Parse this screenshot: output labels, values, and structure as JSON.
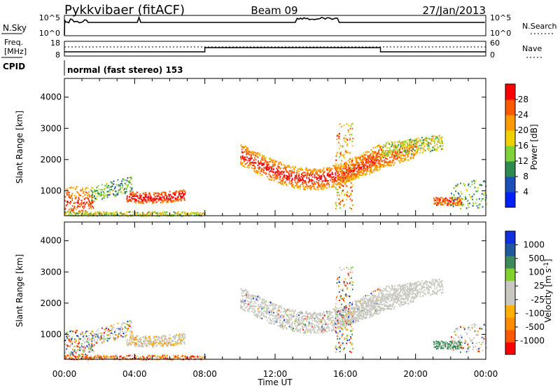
{
  "header": {
    "station": "Pykkvibaer (fitACF)",
    "beam": "Beam 09",
    "date": "27/Jan/2013"
  },
  "nsky_panel": {
    "left_label": "N.Sky",
    "right_label": "N.Search",
    "left_ticks": [
      "10^5",
      "10^0"
    ],
    "right_ticks": [
      "10^5",
      "10^0"
    ]
  },
  "freq_panel": {
    "left_label_1": "Freq.",
    "left_label_2": "[MHz]",
    "left_ticks": [
      "18",
      "8"
    ],
    "right_label": "Nave",
    "right_ticks": [
      "60",
      "0"
    ]
  },
  "cpid": {
    "label": "CPID",
    "value": "normal (fast stereo) 153"
  },
  "colors": {
    "power_scale": [
      "#0020ff",
      "#1d4fb8",
      "#2e8a50",
      "#7fd23a",
      "#f0d000",
      "#ff9a00",
      "#ff5800",
      "#ff0000"
    ],
    "velocity_scale": [
      "#ff0000",
      "#ff5800",
      "#ff8c00",
      "#ffb000",
      "#c8c8c0",
      "#c8c8c0",
      "#80d030",
      "#3e8a5a",
      "#2058a0",
      "#1030e0"
    ],
    "ground_scatter": "#c8c8c0"
  },
  "chart_data": [
    {
      "type": "heatmap",
      "panel": "power",
      "ylabel": "Slant Range [km]",
      "yticks": [
        "1000",
        "2000",
        "3000",
        "4000"
      ],
      "ylim": [
        200,
        4600
      ],
      "xlim": [
        0,
        24
      ],
      "colorbar_label": "Power [dB]",
      "colorbar_ticks": [
        "4",
        "8",
        "12",
        "16",
        "20",
        "24",
        "28"
      ],
      "colorbar_range": [
        0,
        32
      ]
    },
    {
      "type": "heatmap",
      "panel": "velocity",
      "ylabel": "Slant Range [km]",
      "yticks": [
        "1000",
        "2000",
        "3000",
        "4000"
      ],
      "ylim": [
        200,
        4600
      ],
      "xlim": [
        0,
        24
      ],
      "xlabel": "Time UT",
      "xticks": [
        "00:00",
        "04:00",
        "08:00",
        "12:00",
        "16:00",
        "20:00",
        "00:00"
      ],
      "colorbar_label": "Velocity [m s^-1]",
      "colorbar_ticks": [
        "1000",
        "500",
        "100",
        "25",
        "-25",
        "-100",
        "-500",
        "-1000"
      ]
    }
  ]
}
